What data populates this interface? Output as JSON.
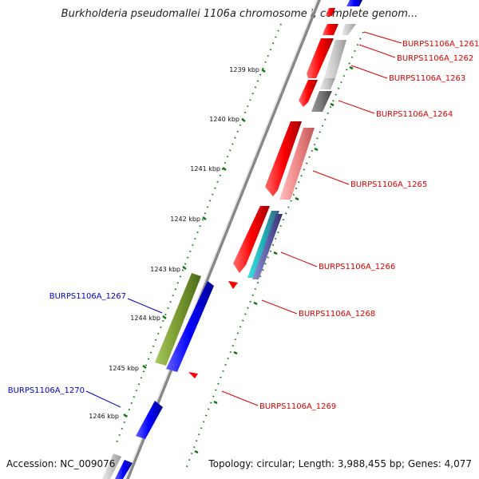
{
  "title": "Burkholderia pseudomallei 1106a chromosome I, complete genom...",
  "accession": "Accession: NC_009076",
  "topology": "Topology: circular; Length: 3,988,455 bp; Genes: 4,077",
  "colors": {
    "forward_label": "#0000cc",
    "reverse_label": "#dd0000",
    "tick": "#117711",
    "backbone": "#888888"
  },
  "ticks": [
    "1239 kbp",
    "1240 kbp",
    "1241 kbp",
    "1242 kbp",
    "1243 kbp",
    "1244 kbp",
    "1245 kbp",
    "1246 kbp"
  ],
  "genes": [
    {
      "label": "BURPS1106A_1261",
      "strand": "reverse",
      "color": "#ff0000"
    },
    {
      "label": "BURPS1106A_1262",
      "strand": "reverse",
      "color": "#ff0000"
    },
    {
      "label": "BURPS1106A_1263",
      "strand": "reverse",
      "color": "#ff0000"
    },
    {
      "label": "BURPS1106A_1264",
      "strand": "reverse",
      "color": "#ff0000"
    },
    {
      "label": "BURPS1106A_1265",
      "strand": "reverse",
      "color": "#ff0000"
    },
    {
      "label": "BURPS1106A_1266",
      "strand": "reverse",
      "color": "#ff0000"
    },
    {
      "label": "BURPS1106A_1267",
      "strand": "forward",
      "color": "#0000ff"
    },
    {
      "label": "BURPS1106A_1268",
      "strand": "reverse",
      "color": "#ff0000"
    },
    {
      "label": "BURPS1106A_1269",
      "strand": "reverse",
      "color": "#ff0000"
    },
    {
      "label": "BURPS1106A_1270",
      "strand": "forward",
      "color": "#0000ff"
    }
  ]
}
